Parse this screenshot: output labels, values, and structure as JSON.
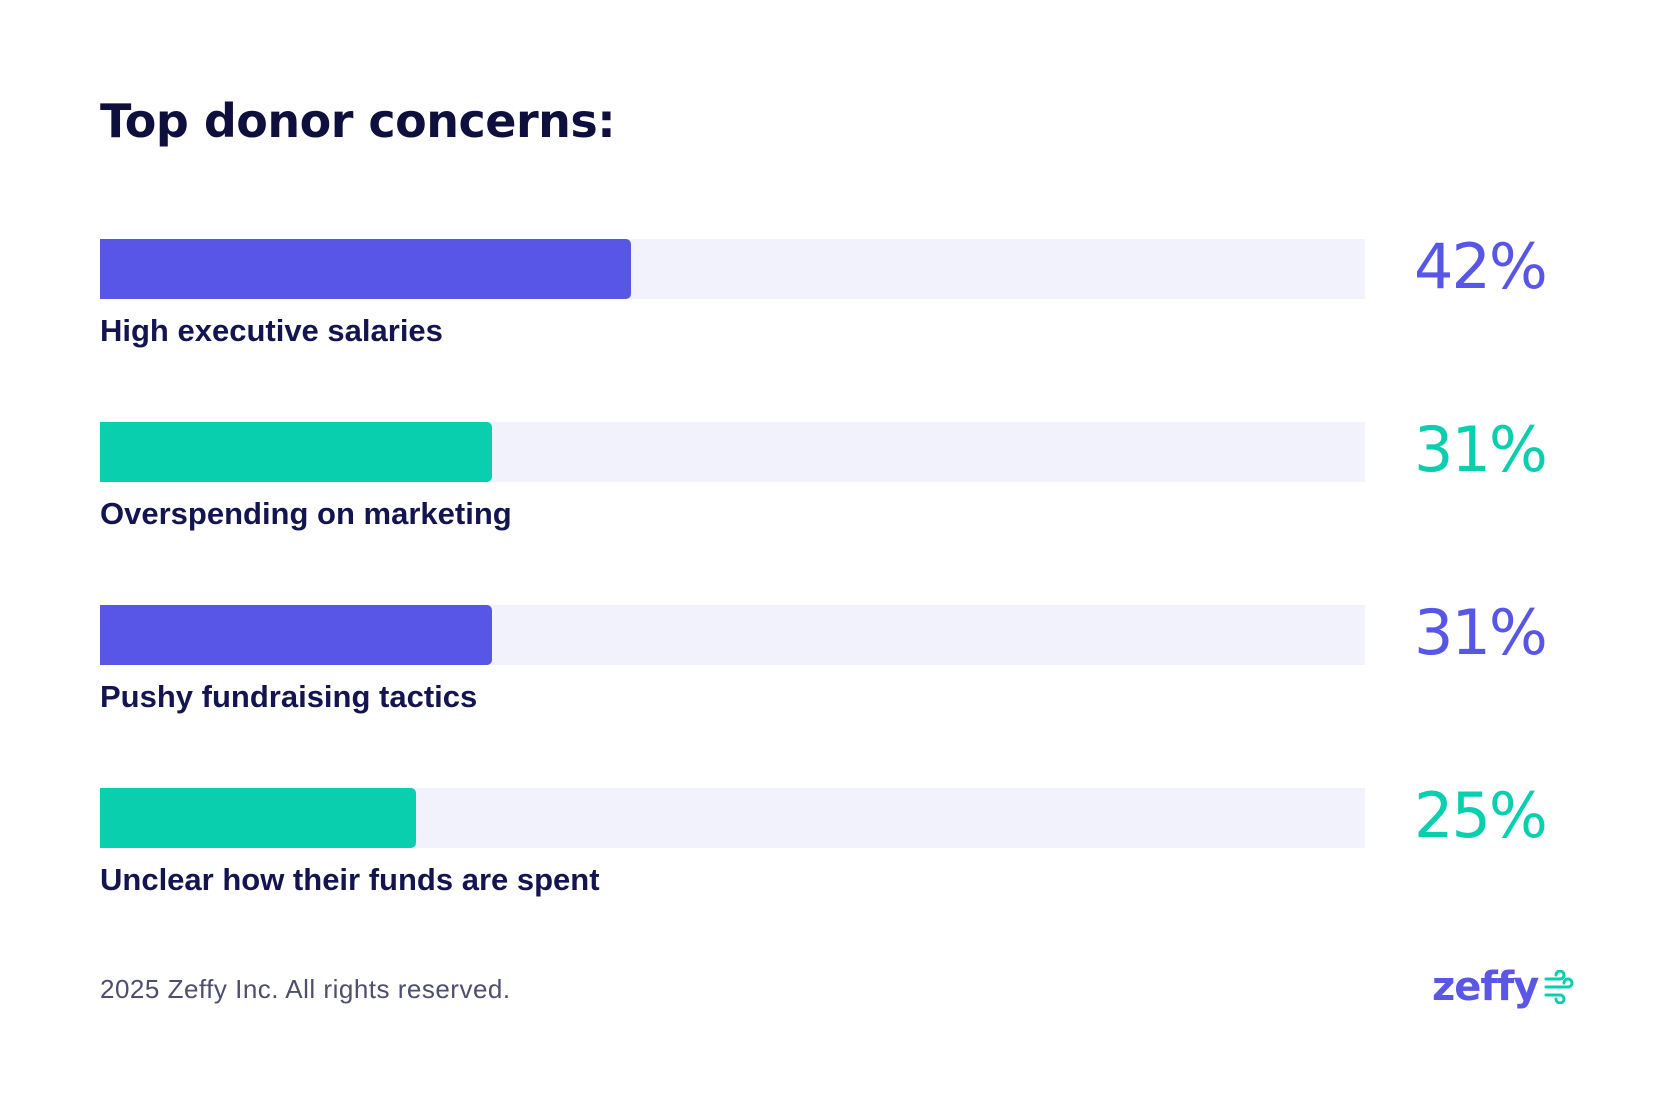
{
  "chart_data": {
    "type": "bar",
    "orientation": "horizontal",
    "title": "Top donor concerns:",
    "xlim": [
      0,
      100
    ],
    "categories": [
      "High executive salaries",
      "Overspending on marketing",
      "Pushy fundraising tactics",
      "Unclear how their funds are spent"
    ],
    "values": [
      42,
      31,
      31,
      25
    ],
    "value_labels": [
      "42%",
      "31%",
      "31%",
      "25%"
    ],
    "colors": [
      "#5856e6",
      "#0acfae",
      "#5856e6",
      "#0acfae"
    ],
    "track_color": "#f2f2fc",
    "grid": false,
    "legend": "none"
  },
  "footer": {
    "copyright": "2025 Zeffy Inc. All rights reserved."
  },
  "logo": {
    "text": "zeffy",
    "icon": "wind-icon",
    "color": "#5a57e6",
    "accent": "#0acfae"
  }
}
